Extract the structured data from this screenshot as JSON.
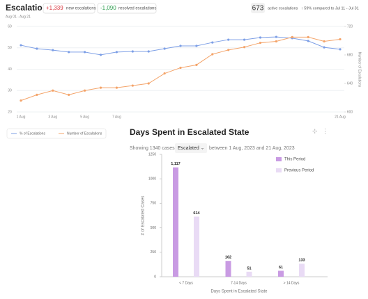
{
  "header": {
    "title": "Escalations",
    "new_count": "+1,339",
    "new_label": "new escalations",
    "resolved_count": "-1,090",
    "resolved_label": "resolved escalations",
    "dates": "Aug 01 - Aug 21",
    "active_count": "673",
    "active_label": "active escalations",
    "change": "↑ 59% compared to Jul 11 - Jul 31"
  },
  "filter": {
    "showing": "Showing 1340 cases",
    "state": "Escalated",
    "range": "between 1 Aug, 2023 and 21 Aug, 2023"
  },
  "chart_data": [
    {
      "type": "line",
      "categories": [
        "1 Aug",
        null,
        "3 Aug",
        null,
        "5 Aug",
        null,
        "7 Aug",
        null,
        null,
        null,
        null,
        null,
        null,
        null,
        null,
        null,
        null,
        null,
        null,
        null,
        "21 Aug"
      ],
      "series": [
        {
          "name": "% of Escalations",
          "color": "#7d9fe6",
          "values": [
            51.2,
            49.6,
            48.9,
            48,
            48,
            46.7,
            48,
            48.3,
            48.3,
            49.6,
            50.9,
            50.9,
            52.5,
            53.8,
            53.8,
            54.8,
            55.1,
            54.5,
            53.2,
            50.2,
            49.3
          ]
        },
        {
          "name": "Number of Escalations",
          "color": "#f4a46a",
          "axis": "y2",
          "values": [
            616,
            624,
            630,
            624,
            630,
            634,
            634,
            637,
            640,
            654,
            662,
            666,
            681,
            687,
            691,
            697,
            699,
            705,
            705,
            699,
            702
          ]
        }
      ],
      "ylim": [
        20,
        60
      ],
      "yticks": [
        20,
        30,
        40,
        50,
        60
      ],
      "y2lim": [
        600,
        720
      ],
      "y2ticks": [
        600,
        640,
        680,
        720
      ],
      "y2label": "Number of Escalations",
      "grid": true
    },
    {
      "type": "bar",
      "title": "Days Spent in Escalated State",
      "categories": [
        "< 7 Days",
        "7-14 Days",
        "> 14 Days"
      ],
      "series": [
        {
          "name": "This Period",
          "color": "#c99be3",
          "values": [
            1117,
            162,
            61
          ],
          "value_labels": [
            "1,117",
            "162",
            "61"
          ]
        },
        {
          "name": "Previous Period",
          "color": "#e9dbf5",
          "values": [
            614,
            51,
            133
          ]
        }
      ],
      "ylim": [
        0,
        1250
      ],
      "yticks": [
        0,
        250,
        500,
        750,
        1000,
        1250
      ],
      "xlabel": "Days Spent in Escalated State",
      "ylabel": "# of Escalated Cases",
      "grid": false,
      "legend": "top-right"
    }
  ]
}
